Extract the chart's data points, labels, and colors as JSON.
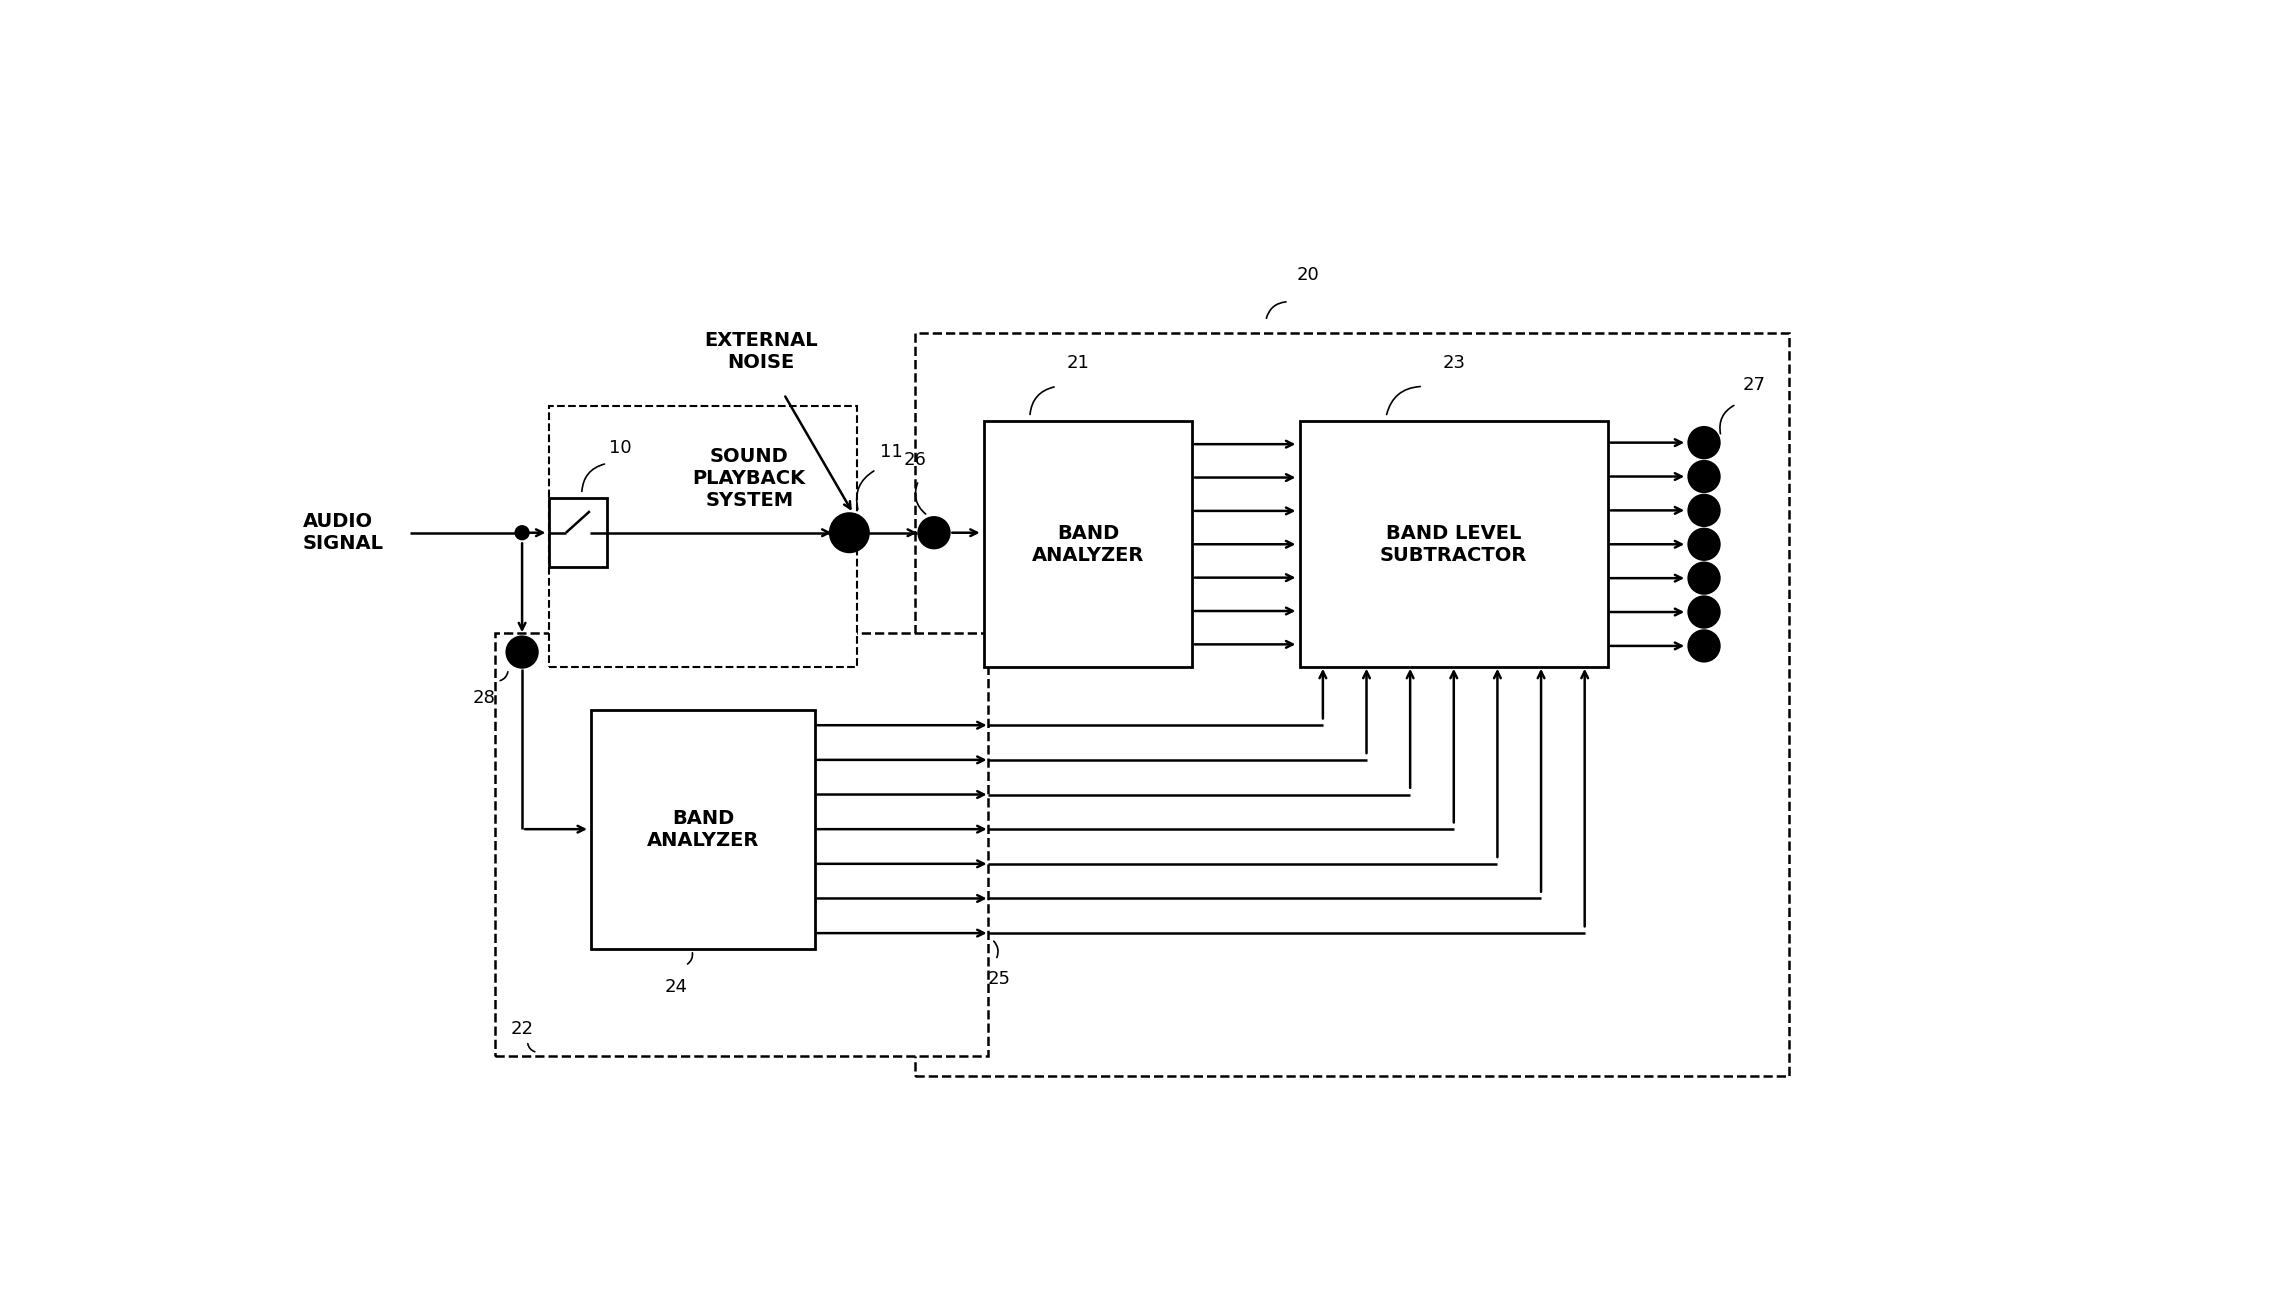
{
  "bg_color": "#ffffff",
  "line_color": "#000000",
  "fig_width": 22.83,
  "fig_height": 13.08,
  "labels": {
    "audio_signal": "AUDIO\nSIGNAL",
    "external_noise": "EXTERNAL\nNOISE",
    "sound_playback": "SOUND\nPLAYBACK\nSYSTEM",
    "band_analyzer_top": "BAND\nANALYZER",
    "band_level_subtractor": "BAND LEVEL\nSUBTRACTOR",
    "band_analyzer_bot": "BAND\nANALYZER"
  },
  "ref_numbers": {
    "n10": "10",
    "n11": "11",
    "n20": "20",
    "n21": "21",
    "n22": "22",
    "n23": "23",
    "n24": "24",
    "n25": "25",
    "n26": "26",
    "n27": "27",
    "n28": "28"
  },
  "num_channels": 7,
  "font_size_label": 14,
  "font_size_ref": 13
}
